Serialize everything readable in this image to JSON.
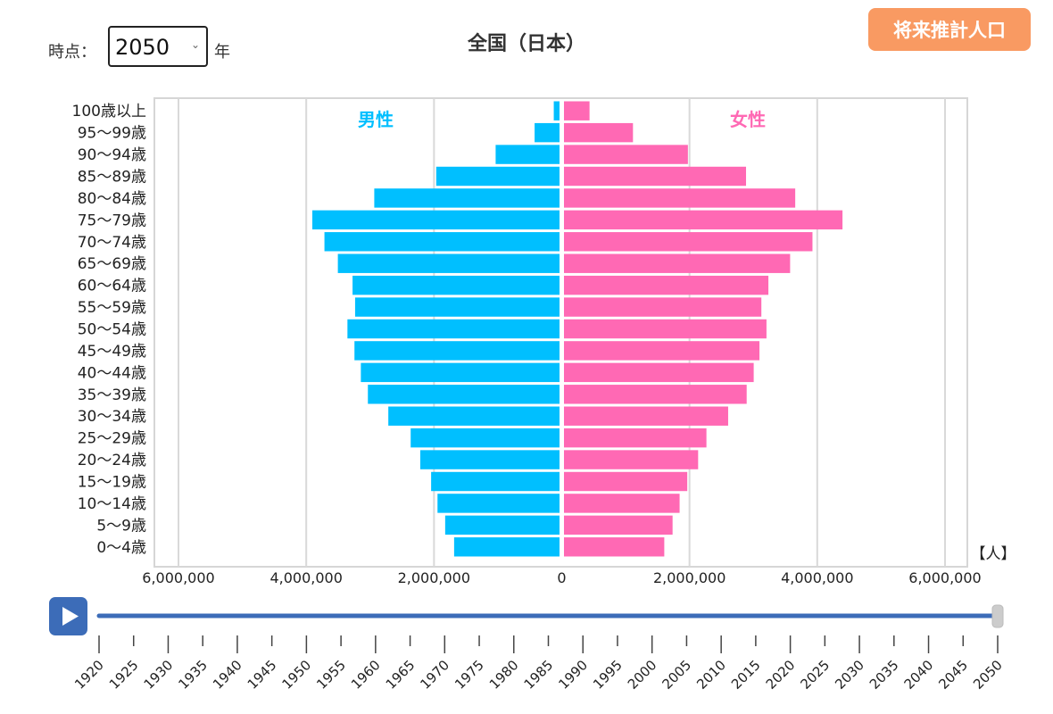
{
  "controls": {
    "time_label": "時点：",
    "selected_year": "2050",
    "year_unit": "年",
    "future_button": "将来推計人口"
  },
  "chart_data": {
    "type": "bar",
    "title": "全国（日本）",
    "orientation": "horizontal-population-pyramid",
    "categories": [
      "0〜4歳",
      "5〜9歳",
      "10〜14歳",
      "15〜19歳",
      "20〜24歳",
      "25〜29歳",
      "30〜34歳",
      "35〜39歳",
      "40〜44歳",
      "45〜49歳",
      "50〜54歳",
      "55〜59歳",
      "60〜64歳",
      "65〜69歳",
      "70〜74歳",
      "75〜79歳",
      "80〜84歳",
      "85〜89歳",
      "90〜94歳",
      "95〜99歳",
      "100歳以上"
    ],
    "series": [
      {
        "name": "男性",
        "color": "#00bfff",
        "values": [
          1650000,
          1790000,
          1910000,
          2010000,
          2180000,
          2330000,
          2680000,
          3000000,
          3110000,
          3210000,
          3320000,
          3200000,
          3240000,
          3470000,
          3680000,
          3870000,
          2900000,
          1930000,
          1000000,
          390000,
          90000
        ]
      },
      {
        "name": "女性",
        "color": "#ff69b4",
        "values": [
          1570000,
          1700000,
          1810000,
          1930000,
          2100000,
          2230000,
          2570000,
          2860000,
          2970000,
          3060000,
          3170000,
          3090000,
          3200000,
          3540000,
          3890000,
          4360000,
          3620000,
          2850000,
          1940000,
          1080000,
          400000
        ]
      }
    ],
    "xlim": [
      -6400000,
      6400000
    ],
    "x_ticks": [
      "6,000,000",
      "4,000,000",
      "2,000,000",
      "0",
      "2,000,000",
      "4,000,000",
      "6,000,000"
    ],
    "unit_label": "【人】",
    "male_label": "男性",
    "female_label": "女性",
    "male_color": "#00bfff",
    "female_color": "#ff69b4"
  },
  "timeline": {
    "years": [
      "1920",
      "1925",
      "1930",
      "1935",
      "1940",
      "1945",
      "1950",
      "1955",
      "1960",
      "1965",
      "1970",
      "1975",
      "1980",
      "1985",
      "1990",
      "1995",
      "2000",
      "2005",
      "2010",
      "2015",
      "2020",
      "2025",
      "2030",
      "2035",
      "2040",
      "2045",
      "2050"
    ],
    "current": "2050",
    "track_color": "#3c6cb8",
    "play_icon": "play-icon"
  }
}
